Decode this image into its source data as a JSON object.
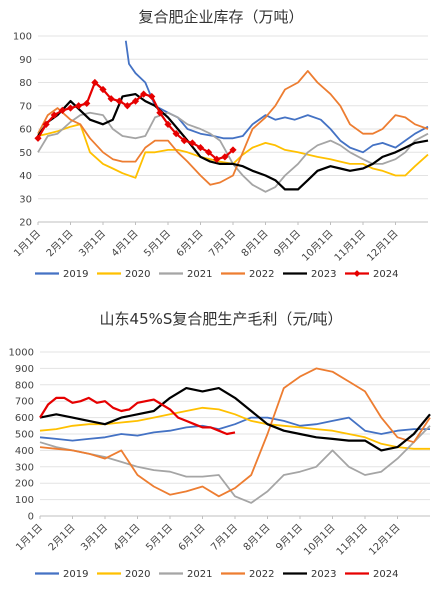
{
  "chart_data": [
    {
      "type": "line",
      "title": "复合肥企业库存（万吨）",
      "ylim": [
        20,
        100
      ],
      "yticks": [
        20,
        30,
        40,
        50,
        60,
        70,
        80,
        90,
        100
      ],
      "x_tick_labels": [
        "1月1日",
        "2月1日",
        "3月1日",
        "4月1日",
        "5月1日",
        "6月1日",
        "7月1日",
        "8月1日",
        "9月1日",
        "10月1日",
        "11月1日",
        "12月1日"
      ],
      "x_domain": [
        0,
        12
      ],
      "legend_position": "bottom",
      "grid": true,
      "series": [
        {
          "name": "2019",
          "color": "#4472c4",
          "x": [
            2.7,
            2.8,
            3.0,
            3.3,
            3.6,
            4.0,
            4.3,
            4.6,
            5.0,
            5.4,
            5.7,
            6.0,
            6.3,
            6.6,
            7.0,
            7.3,
            7.6,
            7.9,
            8.3,
            8.7,
            9.0,
            9.3,
            9.6,
            10.0,
            10.3,
            10.6,
            11.0,
            11.3,
            11.6,
            12.0
          ],
          "y": [
            98,
            88,
            84,
            80,
            70,
            67,
            65,
            60,
            58,
            57,
            56,
            56,
            57,
            62,
            66,
            64,
            65,
            64,
            66,
            64,
            60,
            55,
            52,
            50,
            53,
            54,
            52,
            55,
            58,
            61
          ]
        },
        {
          "name": "2020",
          "color": "#ffc000",
          "x": [
            0.0,
            0.3,
            0.6,
            1.0,
            1.3,
            1.6,
            2.0,
            2.3,
            2.6,
            3.0,
            3.3,
            3.6,
            4.0,
            4.3,
            4.6,
            5.0,
            5.3,
            5.6,
            6.0,
            6.3,
            6.6,
            7.0,
            7.3,
            7.6,
            8.0,
            8.3,
            8.6,
            9.0,
            9.3,
            9.6,
            10.0,
            10.3,
            10.6,
            11.0,
            11.3,
            11.6,
            12.0
          ],
          "y": [
            57,
            58,
            59,
            61,
            62,
            50,
            45,
            43,
            41,
            39,
            50,
            50,
            51,
            51,
            50,
            48,
            47,
            46,
            45,
            49,
            52,
            54,
            53,
            51,
            50,
            49,
            48,
            47,
            46,
            45,
            45,
            43,
            42,
            40,
            40,
            44,
            49
          ]
        },
        {
          "name": "2021",
          "color": "#a5a5a5",
          "x": [
            0.0,
            0.3,
            0.6,
            1.0,
            1.3,
            1.6,
            2.0,
            2.3,
            2.6,
            3.0,
            3.3,
            3.6,
            4.0,
            4.3,
            4.6,
            5.0,
            5.3,
            5.6,
            6.0,
            6.3,
            6.6,
            7.0,
            7.3,
            7.6,
            8.0,
            8.3,
            8.6,
            9.0,
            9.3,
            9.6,
            10.0,
            10.3,
            10.6,
            11.0,
            11.3,
            11.6,
            12.0
          ],
          "y": [
            50,
            57,
            58,
            63,
            66,
            67,
            66,
            60,
            57,
            56,
            57,
            65,
            67,
            65,
            62,
            60,
            58,
            55,
            45,
            40,
            36,
            33,
            35,
            40,
            45,
            50,
            53,
            55,
            53,
            50,
            47,
            45,
            45,
            47,
            50,
            55,
            58
          ]
        },
        {
          "name": "2022",
          "color": "#ed7d31",
          "x": [
            0.0,
            0.3,
            0.6,
            1.0,
            1.3,
            1.6,
            2.0,
            2.3,
            2.6,
            3.0,
            3.3,
            3.6,
            4.0,
            4.3,
            4.6,
            5.0,
            5.3,
            5.6,
            6.0,
            6.3,
            6.6,
            7.0,
            7.3,
            7.6,
            8.0,
            8.3,
            8.6,
            9.0,
            9.3,
            9.6,
            10.0,
            10.3,
            10.6,
            11.0,
            11.3,
            11.6,
            12.0
          ],
          "y": [
            58,
            66,
            69,
            64,
            62,
            56,
            50,
            47,
            46,
            46,
            52,
            55,
            55,
            50,
            46,
            40,
            36,
            37,
            40,
            50,
            60,
            65,
            70,
            77,
            80,
            85,
            80,
            75,
            70,
            62,
            58,
            58,
            60,
            66,
            65,
            62,
            60
          ]
        },
        {
          "name": "2023",
          "color": "#000000",
          "x": [
            0.0,
            0.3,
            0.6,
            1.0,
            1.3,
            1.6,
            2.0,
            2.3,
            2.6,
            3.0,
            3.3,
            3.6,
            4.0,
            4.3,
            4.6,
            5.0,
            5.3,
            5.6,
            6.0,
            6.3,
            6.6,
            7.0,
            7.3,
            7.6,
            8.0,
            8.3,
            8.6,
            9.0,
            9.3,
            9.6,
            10.0,
            10.3,
            10.6,
            11.0,
            11.3,
            11.6,
            12.0
          ],
          "y": [
            57,
            63,
            66,
            72,
            68,
            64,
            62,
            64,
            74,
            75,
            72,
            70,
            65,
            60,
            55,
            48,
            46,
            45,
            45,
            44,
            42,
            40,
            38,
            34,
            34,
            38,
            42,
            44,
            43,
            42,
            43,
            45,
            48,
            50,
            52,
            54,
            55
          ]
        },
        {
          "name": "2024",
          "color": "#e60000",
          "markers": true,
          "x": [
            0.0,
            0.25,
            0.5,
            0.75,
            1.0,
            1.25,
            1.5,
            1.75,
            2.0,
            2.25,
            2.5,
            2.75,
            3.0,
            3.25,
            3.5,
            3.75,
            4.0,
            4.25,
            4.5,
            4.75,
            5.0,
            5.25,
            5.5,
            5.75,
            6.0
          ],
          "y": [
            56,
            62,
            66,
            68,
            69,
            70,
            71,
            80,
            77,
            73,
            72,
            70,
            72,
            75,
            74,
            67,
            62,
            58,
            55,
            54,
            52,
            50,
            47,
            48,
            51
          ]
        }
      ]
    },
    {
      "type": "line",
      "title": "山东45%S复合肥生产毛利（元/吨）",
      "ylim": [
        0,
        1000
      ],
      "yticks": [
        0,
        100,
        200,
        300,
        400,
        500,
        600,
        700,
        800,
        900,
        1000
      ],
      "x_tick_labels": [
        "1月1日",
        "2月1日",
        "3月1日",
        "4月1日",
        "5月1日",
        "6月1日",
        "7月1日",
        "8月1日",
        "9月1日",
        "10月1日",
        "11月1日",
        "12月1日"
      ],
      "x_domain": [
        0,
        12
      ],
      "legend_position": "bottom",
      "grid": true,
      "series": [
        {
          "name": "2019",
          "color": "#4472c4",
          "x": [
            0.0,
            0.5,
            1.0,
            1.5,
            2.0,
            2.5,
            3.0,
            3.5,
            4.0,
            4.5,
            5.0,
            5.5,
            6.0,
            6.5,
            7.0,
            7.5,
            8.0,
            8.5,
            9.0,
            9.5,
            10.0,
            10.5,
            11.0,
            11.5,
            12.0
          ],
          "y": [
            480,
            470,
            460,
            470,
            480,
            500,
            490,
            510,
            520,
            540,
            550,
            530,
            560,
            600,
            600,
            580,
            550,
            560,
            580,
            600,
            520,
            500,
            520,
            530,
            530
          ]
        },
        {
          "name": "2020",
          "color": "#ffc000",
          "x": [
            0.0,
            0.5,
            1.0,
            1.5,
            2.0,
            2.5,
            3.0,
            3.5,
            4.0,
            4.5,
            5.0,
            5.5,
            6.0,
            6.5,
            7.0,
            7.5,
            8.0,
            8.5,
            9.0,
            9.5,
            10.0,
            10.5,
            11.0,
            11.5,
            12.0
          ],
          "y": [
            520,
            530,
            550,
            560,
            560,
            570,
            580,
            600,
            620,
            640,
            660,
            650,
            620,
            580,
            560,
            550,
            540,
            530,
            520,
            500,
            480,
            440,
            420,
            410,
            410
          ]
        },
        {
          "name": "2021",
          "color": "#a5a5a5",
          "x": [
            0.0,
            0.5,
            1.0,
            1.5,
            2.0,
            2.5,
            3.0,
            3.5,
            4.0,
            4.5,
            5.0,
            5.5,
            6.0,
            6.5,
            7.0,
            7.5,
            8.0,
            8.5,
            9.0,
            9.5,
            10.0,
            10.5,
            11.0,
            11.5,
            12.0
          ],
          "y": [
            450,
            420,
            400,
            380,
            360,
            330,
            300,
            280,
            270,
            240,
            240,
            250,
            120,
            80,
            150,
            250,
            270,
            300,
            400,
            300,
            250,
            270,
            350,
            450,
            550
          ]
        },
        {
          "name": "2022",
          "color": "#ed7d31",
          "x": [
            0.0,
            0.5,
            1.0,
            1.5,
            2.0,
            2.5,
            3.0,
            3.5,
            4.0,
            4.5,
            5.0,
            5.5,
            6.0,
            6.5,
            7.0,
            7.5,
            8.0,
            8.5,
            9.0,
            9.5,
            10.0,
            10.5,
            11.0,
            11.5,
            12.0
          ],
          "y": [
            420,
            410,
            400,
            380,
            350,
            400,
            250,
            180,
            130,
            150,
            180,
            120,
            170,
            250,
            500,
            780,
            850,
            900,
            880,
            820,
            760,
            600,
            480,
            450,
            600
          ]
        },
        {
          "name": "2023",
          "color": "#000000",
          "x": [
            0.0,
            0.5,
            1.0,
            1.5,
            2.0,
            2.5,
            3.0,
            3.5,
            4.0,
            4.5,
            5.0,
            5.5,
            6.0,
            6.5,
            7.0,
            7.5,
            8.0,
            8.5,
            9.0,
            9.5,
            10.0,
            10.5,
            11.0,
            11.5,
            12.0
          ],
          "y": [
            600,
            620,
            600,
            580,
            560,
            600,
            620,
            640,
            720,
            780,
            760,
            780,
            720,
            640,
            560,
            520,
            500,
            480,
            470,
            460,
            460,
            400,
            420,
            500,
            620
          ]
        },
        {
          "name": "2024",
          "color": "#e60000",
          "x": [
            0.0,
            0.25,
            0.5,
            0.75,
            1.0,
            1.25,
            1.5,
            1.75,
            2.0,
            2.25,
            2.5,
            2.75,
            3.0,
            3.25,
            3.5,
            3.75,
            4.0,
            4.25,
            4.5,
            4.75,
            5.0,
            5.25,
            5.5,
            5.75,
            6.0
          ],
          "y": [
            600,
            680,
            720,
            720,
            690,
            700,
            720,
            690,
            700,
            660,
            640,
            650,
            690,
            700,
            710,
            680,
            650,
            600,
            580,
            560,
            540,
            540,
            520,
            500,
            510
          ]
        }
      ]
    }
  ]
}
